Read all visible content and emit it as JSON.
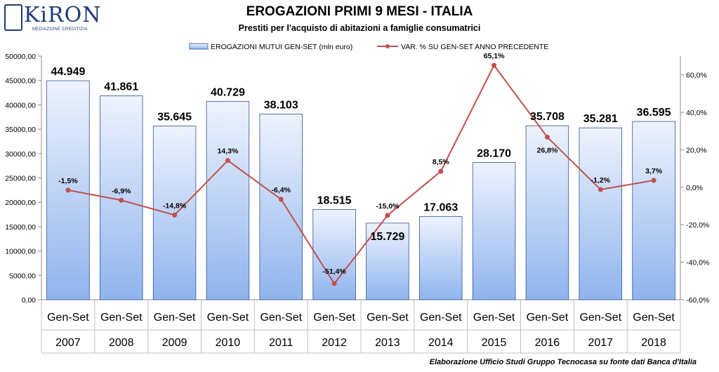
{
  "logo": {
    "name": "KiRON",
    "sub": "MEDIAZIONE CREDITIZIA",
    "reg": "®"
  },
  "header": {
    "title": "EROGAZIONI PRIMI 9 MESI - ITALIA",
    "subtitle": "Prestiti per l'acquisto di abitazioni a famiglie consumatrici"
  },
  "footer": {
    "source": "Elaborazione  Ufficio Studi Gruppo Tecnocasa su fonte dati Banca d'Italia"
  },
  "colors": {
    "bar_fill_top": "#eef3fd",
    "bar_fill_bottom": "#8fb4ee",
    "bar_stroke": "#2f5597",
    "line": "#c0504d"
  },
  "chart_data": {
    "type": "bar+line",
    "categories": [
      [
        "Gen-Set",
        "2007"
      ],
      [
        "Gen-Set",
        "2008"
      ],
      [
        "Gen-Set",
        "2009"
      ],
      [
        "Gen-Set",
        "2010"
      ],
      [
        "Gen-Set",
        "2011"
      ],
      [
        "Gen-Set",
        "2012"
      ],
      [
        "Gen-Set",
        "2013"
      ],
      [
        "Gen-Set",
        "2014"
      ],
      [
        "Gen-Set",
        "2015"
      ],
      [
        "Gen-Set",
        "2016"
      ],
      [
        "Gen-Set",
        "2017"
      ],
      [
        "Gen-Set",
        "2018"
      ]
    ],
    "series": [
      {
        "name": "EROGAZIONI MUTUI GEN-SET (mln euro)",
        "kind": "bar",
        "axis": "left",
        "values": [
          44949,
          41861,
          35645,
          40729,
          38103,
          18515,
          15729,
          17063,
          28170,
          35708,
          35281,
          36595
        ],
        "labels": [
          "44.949",
          "41.861",
          "35.645",
          "40.729",
          "38.103",
          "18.515",
          "15.729",
          "17.063",
          "28.170",
          "35.708",
          "35.281",
          "36.595"
        ]
      },
      {
        "name": "VAR. % SU GEN-SET ANNO PRECEDENTE",
        "kind": "line",
        "axis": "right",
        "values": [
          -1.5,
          -6.9,
          -14.8,
          14.3,
          -6.4,
          -51.4,
          -15.0,
          8.5,
          65.1,
          26.8,
          -1.2,
          3.7
        ],
        "labels": [
          "-1,5%",
          "-6,9%",
          "-14,8%",
          "14,3%",
          "-6,4%",
          "-51,4%",
          "-15,0%",
          "8,5%",
          "65,1%",
          "26,8%",
          "-1,2%",
          "3,7%"
        ]
      }
    ],
    "y_left": {
      "min": 0,
      "max": 50000,
      "ticks": [
        "0,00",
        "5000,00",
        "10000,00",
        "15000,00",
        "20000,00",
        "25000,00",
        "30000,00",
        "35000,00",
        "40000,00",
        "45000,00",
        "50000,00"
      ]
    },
    "y_right": {
      "min": -60,
      "max": 70,
      "ticks": [
        {
          "v": -60,
          "label": "-60,0%"
        },
        {
          "v": -40,
          "label": "-40,0%"
        },
        {
          "v": -20,
          "label": "-20,0%"
        },
        {
          "v": 0,
          "label": "0,0%"
        },
        {
          "v": 20,
          "label": "20,0%"
        },
        {
          "v": 40,
          "label": "40,0%"
        },
        {
          "v": 60,
          "label": "60,0%"
        }
      ]
    },
    "legend_position": "top",
    "grid": false
  }
}
